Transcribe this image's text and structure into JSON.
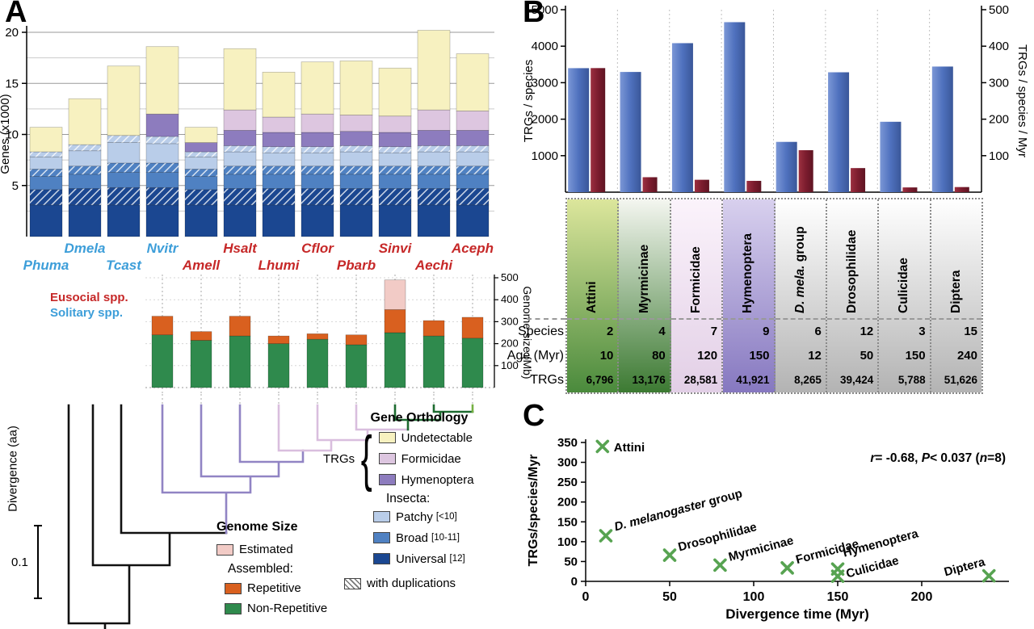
{
  "panelA": {
    "label": "A",
    "social_legend": {
      "eusocial": "Eusocial spp.",
      "solitary": "Solitary spp."
    },
    "social_colors": {
      "eusocial": "#c62828",
      "solitary": "#3d9ed9"
    },
    "divergence_label": "Divergence (aa)",
    "scale_bar_label": "0.1",
    "orthology_legend": {
      "title": "Gene Orthology",
      "trgs_label": "TRGs",
      "brace": "{",
      "trg_items": [
        {
          "label": "Undetectable",
          "color": "#f7f1c0"
        },
        {
          "label": "Formicidae",
          "color": "#ddc6e0"
        },
        {
          "label": "Hymenoptera",
          "color": "#8d7cbe"
        }
      ],
      "insecta_label": "Insecta:",
      "insecta_items": [
        {
          "label": "Patchy",
          "range": "[<10]",
          "color": "#b9cde9"
        },
        {
          "label": "Broad",
          "range": "[10-11]",
          "color": "#4f81c2"
        },
        {
          "label": "Universal",
          "range": "[12]",
          "color": "#1b4791"
        }
      ],
      "duplications_label": "with duplications"
    },
    "genome_legend": {
      "title": "Genome Size",
      "estimated": {
        "label": "Estimated",
        "color": "#f2cbc6"
      },
      "assembled_label": "Assembled:",
      "repetitive": {
        "label": "Repetitive",
        "color": "#d9601f"
      },
      "non_repetitive": {
        "label": "Non-Repetitive",
        "color": "#2f8a4d"
      }
    }
  },
  "panelB": {
    "label": "B",
    "row_labels": {
      "species": "Species",
      "age": "Age (Myr)",
      "trgs": "TRGs"
    },
    "columns": [
      {
        "parts": [
          {
            "t": "Attini",
            "i": false
          }
        ],
        "top": "#dce69c",
        "bottom": "#4a8a3c"
      },
      {
        "parts": [
          {
            "t": "Myrmicinae",
            "i": false
          }
        ],
        "top": "#f4f6f0",
        "bottom": "#3c7a32"
      },
      {
        "parts": [
          {
            "t": "Formicidae",
            "i": false
          }
        ],
        "top": "#fbf3fb",
        "bottom": "#e2cfe6"
      },
      {
        "parts": [
          {
            "t": "Hymenoptera",
            "i": false
          }
        ],
        "top": "#d8d0ee",
        "bottom": "#8678c0"
      },
      {
        "parts": [
          {
            "t": "D. mela.",
            "i": true
          },
          {
            "t": " group",
            "i": false
          }
        ],
        "top": "#ffffff",
        "bottom": "#b3b3b3"
      },
      {
        "parts": [
          {
            "t": "Drosophilidae",
            "i": false
          }
        ],
        "top": "#ffffff",
        "bottom": "#b3b3b3"
      },
      {
        "parts": [
          {
            "t": "Culicidae",
            "i": false
          }
        ],
        "top": "#ffffff",
        "bottom": "#b3b3b3"
      },
      {
        "parts": [
          {
            "t": "Diptera",
            "i": false
          }
        ],
        "top": "#ffffff",
        "bottom": "#b3b3b3"
      }
    ]
  },
  "panelC": {
    "label": "C"
  },
  "chart_data": [
    {
      "id": "panelA_genes",
      "type": "bar",
      "stacked": true,
      "ylabel": "Genes (x1000)",
      "ylim": [
        0,
        21
      ],
      "yticks": [
        5,
        10,
        15,
        20
      ],
      "categories": [
        "Phuma",
        "Dmela",
        "Tcast",
        "Nvitr",
        "Amell",
        "Hsalt",
        "Lhumi",
        "Cflor",
        "Pbarb",
        "Sinvi",
        "Aechi",
        "Aceph"
      ],
      "social": [
        "solitary",
        "solitary",
        "solitary",
        "solitary",
        "eusocial",
        "eusocial",
        "eusocial",
        "eusocial",
        "eusocial",
        "eusocial",
        "eusocial",
        "eusocial"
      ],
      "series": [
        {
          "name": "Universal [12]",
          "color": "#1b4791",
          "hatch": false,
          "values": [
            3.1,
            3.1,
            3.1,
            3.1,
            3.1,
            3.1,
            3.1,
            3.1,
            3.1,
            3.1,
            3.1,
            3.1
          ]
        },
        {
          "name": "Universal with duplications",
          "color": "#1b4791",
          "hatch": true,
          "values": [
            1.5,
            1.6,
            1.7,
            1.7,
            1.5,
            1.6,
            1.6,
            1.6,
            1.6,
            1.6,
            1.6,
            1.6
          ]
        },
        {
          "name": "Broad [10-11]",
          "color": "#4f81c2",
          "hatch": false,
          "values": [
            1.3,
            1.4,
            1.5,
            1.5,
            1.3,
            1.4,
            1.4,
            1.4,
            1.4,
            1.4,
            1.4,
            1.4
          ]
        },
        {
          "name": "Broad with duplications",
          "color": "#4f81c2",
          "hatch": true,
          "values": [
            0.7,
            0.8,
            0.9,
            0.9,
            0.7,
            0.8,
            0.8,
            0.8,
            0.8,
            0.8,
            0.8,
            0.8
          ]
        },
        {
          "name": "Patchy [<10]",
          "color": "#b9cde9",
          "hatch": false,
          "values": [
            1.2,
            1.5,
            2.0,
            1.9,
            1.2,
            1.4,
            1.3,
            1.3,
            1.4,
            1.3,
            1.4,
            1.4
          ]
        },
        {
          "name": "Patchy with duplications",
          "color": "#b9cde9",
          "hatch": true,
          "values": [
            0.5,
            0.6,
            0.7,
            0.7,
            0.5,
            0.6,
            0.6,
            0.6,
            0.6,
            0.6,
            0.6,
            0.6
          ]
        },
        {
          "name": "TRGs Hymenoptera",
          "color": "#8d7cbe",
          "hatch": false,
          "values": [
            0,
            0,
            0,
            2.2,
            0.9,
            1.5,
            1.4,
            1.4,
            1.4,
            1.4,
            1.5,
            1.5
          ]
        },
        {
          "name": "TRGs Formicidae",
          "color": "#ddc6e0",
          "hatch": false,
          "values": [
            0,
            0,
            0,
            0,
            0,
            2.0,
            1.5,
            1.8,
            1.6,
            1.6,
            2.0,
            1.9
          ]
        },
        {
          "name": "TRGs Undetectable",
          "color": "#f7f1c0",
          "hatch": false,
          "values": [
            2.4,
            4.5,
            6.8,
            6.6,
            1.5,
            6.0,
            4.4,
            5.1,
            5.3,
            4.7,
            7.8,
            5.6
          ]
        }
      ]
    },
    {
      "id": "panelA_genome",
      "type": "bar",
      "stacked": true,
      "ylabel": "Genome size (Mb)",
      "ylim": [
        0,
        520
      ],
      "yticks": [
        100,
        200,
        300,
        400,
        500
      ],
      "categories": [
        "Nvitr",
        "Amell",
        "Hsalt",
        "Lhumi",
        "Cflor",
        "Pbarb",
        "Sinvi",
        "Aechi",
        "Aceph"
      ],
      "series": [
        {
          "name": "Non-Repetitive",
          "color": "#2f8a4d",
          "values": [
            240,
            215,
            235,
            200,
            220,
            195,
            250,
            235,
            225
          ]
        },
        {
          "name": "Repetitive",
          "color": "#d9601f",
          "values": [
            85,
            40,
            90,
            35,
            25,
            45,
            105,
            70,
            95
          ]
        },
        {
          "name": "Estimated",
          "color": "#f2cbc6",
          "values": [
            0,
            0,
            0,
            0,
            0,
            0,
            135,
            0,
            0
          ]
        }
      ]
    },
    {
      "id": "panelB",
      "type": "bar",
      "categories": [
        "Attini",
        "Myrmicinae",
        "Formicidae",
        "Hymenoptera",
        "D. mela. group",
        "Drosophilidae",
        "Culicidae",
        "Diptera"
      ],
      "left_axis": {
        "title": "TRGs / species",
        "ticks": [
          1000,
          2000,
          3000,
          4000,
          5000
        ],
        "max": 5000
      },
      "right_axis": {
        "title": "TRGs / species / Myr",
        "ticks": [
          100,
          200,
          300,
          400,
          500
        ],
        "max": 500
      },
      "series": [
        {
          "name": "TRGs / species",
          "axis": "left",
          "color": "#4f71be",
          "values": [
            3398,
            3294,
            4083,
            4658,
            1378,
            3285,
            1929,
            3442
          ]
        },
        {
          "name": "TRGs / species / Myr",
          "axis": "right",
          "color": "#7b1c2e",
          "values": [
            340,
            41,
            34,
            31,
            115,
            66,
            13,
            14
          ]
        }
      ],
      "table": {
        "Species": [
          2,
          4,
          7,
          9,
          6,
          12,
          3,
          15
        ],
        "Age (Myr)": [
          10,
          80,
          120,
          150,
          12,
          50,
          150,
          240
        ],
        "TRGs": [
          "6,796",
          "13,176",
          "28,581",
          "41,921",
          "8,265",
          "39,424",
          "5,788",
          "51,626"
        ]
      }
    },
    {
      "id": "panelC",
      "type": "scatter",
      "xlabel": "Divergence time (Myr)",
      "ylabel": "TRGs/species/Myr",
      "xlim": [
        0,
        250
      ],
      "ylim": [
        0,
        350
      ],
      "xticks": [
        0,
        50,
        100,
        150,
        200
      ],
      "yticks": [
        0,
        50,
        100,
        150,
        200,
        250,
        300,
        350
      ],
      "marker": {
        "shape": "x",
        "color": "#57a351"
      },
      "annotation": "r= -0.68, P< 0.037 (n=8)",
      "annotation_parts": [
        {
          "t": "r",
          "i": true
        },
        {
          "t": "= -0.68, ",
          "i": false
        },
        {
          "t": "P",
          "i": true
        },
        {
          "t": "< 0.037 (",
          "i": false
        },
        {
          "t": "n",
          "i": true
        },
        {
          "t": "=8)",
          "i": false
        }
      ],
      "points": [
        {
          "label": "Attini",
          "x": 10,
          "y": 340
        },
        {
          "label": "D. melanogaster group",
          "x": 12,
          "y": 115,
          "parts": [
            {
              "t": "D. melanogaster",
              "i": true
            },
            {
              "t": " group",
              "i": false
            }
          ]
        },
        {
          "label": "Drosophilidae",
          "x": 50,
          "y": 66
        },
        {
          "label": "Myrmicinae",
          "x": 80,
          "y": 41
        },
        {
          "label": "Formicidae",
          "x": 120,
          "y": 34
        },
        {
          "label": "Hymenoptera",
          "x": 150,
          "y": 31
        },
        {
          "label": "Culicidae",
          "x": 150,
          "y": 13
        },
        {
          "label": "Diptera",
          "x": 240,
          "y": 14
        }
      ]
    }
  ]
}
